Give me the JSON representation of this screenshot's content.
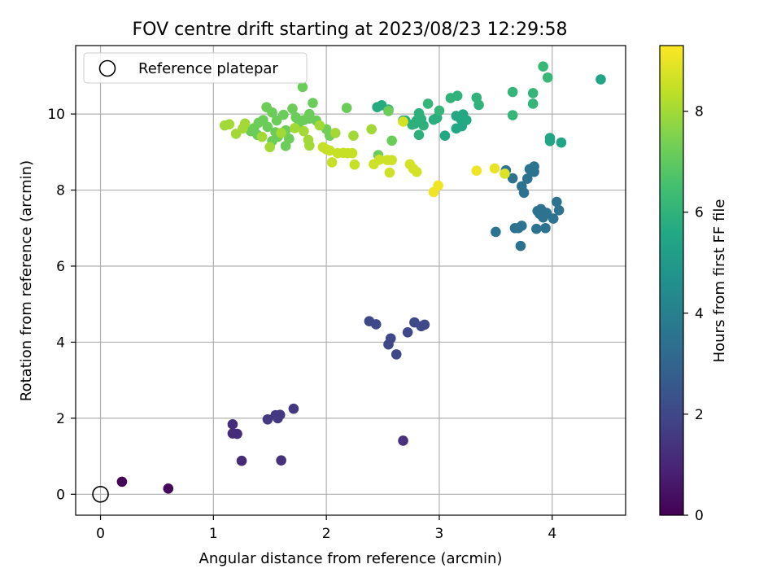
{
  "chart_data": {
    "type": "scatter",
    "title": "FOV centre drift starting at 2023/08/23 12:29:58",
    "xlabel": "Angular distance from reference (arcmin)",
    "ylabel": "Rotation from reference (arcmin)",
    "xlim": [
      -0.22,
      4.65
    ],
    "ylim": [
      -0.55,
      11.8
    ],
    "xticks": [
      0,
      1,
      2,
      3,
      4
    ],
    "yticks": [
      0,
      2,
      4,
      6,
      8,
      10
    ],
    "grid": true,
    "legend": {
      "position": "top-left",
      "entries": [
        "Reference platepar"
      ]
    },
    "reference_point": {
      "x": 0,
      "y": 0,
      "label": "Reference platepar"
    },
    "colorbar": {
      "label": "Hours from first FF file",
      "min": 0,
      "max": 9.3,
      "ticks": [
        0,
        2,
        4,
        6,
        8
      ],
      "colormap": "viridis"
    },
    "points": [
      {
        "x": 0.19,
        "y": 0.33,
        "c": 0.1
      },
      {
        "x": 0.6,
        "y": 0.15,
        "c": 0.2
      },
      {
        "x": 1.17,
        "y": 1.84,
        "c": 1.2
      },
      {
        "x": 1.17,
        "y": 1.6,
        "c": 1.2
      },
      {
        "x": 1.21,
        "y": 1.59,
        "c": 1.2
      },
      {
        "x": 1.25,
        "y": 0.88,
        "c": 1.1
      },
      {
        "x": 1.48,
        "y": 1.97,
        "c": 1.5
      },
      {
        "x": 1.55,
        "y": 2.08,
        "c": 1.5
      },
      {
        "x": 1.57,
        "y": 2.0,
        "c": 1.5
      },
      {
        "x": 1.59,
        "y": 2.09,
        "c": 1.5
      },
      {
        "x": 1.6,
        "y": 0.89,
        "c": 1.3
      },
      {
        "x": 1.71,
        "y": 2.25,
        "c": 1.5
      },
      {
        "x": 2.38,
        "y": 4.55,
        "c": 2.0
      },
      {
        "x": 2.44,
        "y": 4.47,
        "c": 2.0
      },
      {
        "x": 2.55,
        "y": 3.94,
        "c": 2.0
      },
      {
        "x": 2.57,
        "y": 4.1,
        "c": 2.0
      },
      {
        "x": 2.62,
        "y": 3.68,
        "c": 2.0
      },
      {
        "x": 2.68,
        "y": 1.41,
        "c": 1.3
      },
      {
        "x": 2.72,
        "y": 4.26,
        "c": 2.0
      },
      {
        "x": 2.78,
        "y": 4.52,
        "c": 2.0
      },
      {
        "x": 2.84,
        "y": 4.42,
        "c": 2.0
      },
      {
        "x": 2.87,
        "y": 4.46,
        "c": 2.0
      },
      {
        "x": 3.5,
        "y": 6.9,
        "c": 3.5
      },
      {
        "x": 3.59,
        "y": 8.52,
        "c": 3.5
      },
      {
        "x": 3.65,
        "y": 8.31,
        "c": 3.5
      },
      {
        "x": 3.67,
        "y": 7.0,
        "c": 3.5
      },
      {
        "x": 3.7,
        "y": 7.0,
        "c": 3.5
      },
      {
        "x": 3.72,
        "y": 6.53,
        "c": 3.5
      },
      {
        "x": 3.73,
        "y": 7.06,
        "c": 3.5
      },
      {
        "x": 3.73,
        "y": 8.1,
        "c": 3.5
      },
      {
        "x": 3.75,
        "y": 7.93,
        "c": 3.5
      },
      {
        "x": 3.78,
        "y": 8.3,
        "c": 3.5
      },
      {
        "x": 3.8,
        "y": 8.55,
        "c": 3.5
      },
      {
        "x": 3.84,
        "y": 8.62,
        "c": 3.5
      },
      {
        "x": 3.84,
        "y": 8.48,
        "c": 3.5
      },
      {
        "x": 3.86,
        "y": 6.98,
        "c": 3.5
      },
      {
        "x": 3.87,
        "y": 7.45,
        "c": 3.5
      },
      {
        "x": 3.89,
        "y": 7.37,
        "c": 3.5
      },
      {
        "x": 3.9,
        "y": 7.5,
        "c": 3.5
      },
      {
        "x": 3.92,
        "y": 7.28,
        "c": 3.5
      },
      {
        "x": 3.94,
        "y": 7.0,
        "c": 3.5
      },
      {
        "x": 3.95,
        "y": 7.4,
        "c": 3.5
      },
      {
        "x": 4.01,
        "y": 7.25,
        "c": 3.5
      },
      {
        "x": 4.04,
        "y": 7.69,
        "c": 3.5
      },
      {
        "x": 4.06,
        "y": 7.47,
        "c": 3.5
      },
      {
        "x": 3.98,
        "y": 9.37,
        "c": 5.4
      },
      {
        "x": 3.98,
        "y": 9.29,
        "c": 5.4
      },
      {
        "x": 4.08,
        "y": 9.25,
        "c": 5.4
      },
      {
        "x": 4.43,
        "y": 10.91,
        "c": 5.4
      },
      {
        "x": 3.92,
        "y": 11.25,
        "c": 6.2
      },
      {
        "x": 3.96,
        "y": 10.96,
        "c": 6.2
      },
      {
        "x": 3.83,
        "y": 10.55,
        "c": 6.1
      },
      {
        "x": 3.83,
        "y": 10.27,
        "c": 6.1
      },
      {
        "x": 3.65,
        "y": 10.58,
        "c": 6.1
      },
      {
        "x": 3.65,
        "y": 9.97,
        "c": 6.1
      },
      {
        "x": 3.33,
        "y": 10.43,
        "c": 6.0
      },
      {
        "x": 3.35,
        "y": 10.24,
        "c": 6.0
      },
      {
        "x": 3.16,
        "y": 10.48,
        "c": 6.0
      },
      {
        "x": 3.1,
        "y": 10.42,
        "c": 6.0
      },
      {
        "x": 3.15,
        "y": 9.95,
        "c": 5.6
      },
      {
        "x": 3.19,
        "y": 9.87,
        "c": 5.6
      },
      {
        "x": 3.21,
        "y": 9.99,
        "c": 5.6
      },
      {
        "x": 3.24,
        "y": 9.84,
        "c": 5.6
      },
      {
        "x": 3.2,
        "y": 9.68,
        "c": 5.6
      },
      {
        "x": 3.15,
        "y": 9.62,
        "c": 5.6
      },
      {
        "x": 3.05,
        "y": 9.43,
        "c": 5.6
      },
      {
        "x": 2.98,
        "y": 9.9,
        "c": 5.8
      },
      {
        "x": 3.0,
        "y": 10.09,
        "c": 6.1
      },
      {
        "x": 2.9,
        "y": 10.27,
        "c": 6.1
      },
      {
        "x": 2.95,
        "y": 9.85,
        "c": 5.8
      },
      {
        "x": 2.82,
        "y": 10.02,
        "c": 5.9
      },
      {
        "x": 2.8,
        "y": 9.83,
        "c": 5.9
      },
      {
        "x": 2.78,
        "y": 9.74,
        "c": 5.9
      },
      {
        "x": 2.84,
        "y": 9.87,
        "c": 5.9
      },
      {
        "x": 2.86,
        "y": 9.7,
        "c": 5.9
      },
      {
        "x": 2.82,
        "y": 9.45,
        "c": 5.9
      },
      {
        "x": 2.7,
        "y": 9.83,
        "c": 5.9
      },
      {
        "x": 2.76,
        "y": 9.72,
        "c": 5.9
      },
      {
        "x": 2.68,
        "y": 9.83,
        "c": 5.5
      },
      {
        "x": 2.45,
        "y": 10.18,
        "c": 5.7
      },
      {
        "x": 2.49,
        "y": 10.23,
        "c": 5.7
      },
      {
        "x": 2.55,
        "y": 10.12,
        "c": 6.0
      },
      {
        "x": 1.79,
        "y": 10.71,
        "c": 7.2
      },
      {
        "x": 1.88,
        "y": 10.29,
        "c": 7.2
      },
      {
        "x": 1.85,
        "y": 10.0,
        "c": 7.2
      },
      {
        "x": 1.8,
        "y": 9.84,
        "c": 7.2
      },
      {
        "x": 1.73,
        "y": 9.91,
        "c": 7.2
      },
      {
        "x": 1.7,
        "y": 10.14,
        "c": 7.2
      },
      {
        "x": 1.62,
        "y": 9.98,
        "c": 7.2
      },
      {
        "x": 1.56,
        "y": 9.83,
        "c": 7.2
      },
      {
        "x": 1.52,
        "y": 10.04,
        "c": 7.2
      },
      {
        "x": 1.47,
        "y": 10.18,
        "c": 7.2
      },
      {
        "x": 1.44,
        "y": 9.84,
        "c": 7.2
      },
      {
        "x": 1.48,
        "y": 9.66,
        "c": 7.2
      },
      {
        "x": 1.55,
        "y": 9.52,
        "c": 7.2
      },
      {
        "x": 1.57,
        "y": 9.4,
        "c": 7.2
      },
      {
        "x": 1.52,
        "y": 9.29,
        "c": 7.2
      },
      {
        "x": 1.64,
        "y": 9.57,
        "c": 7.2
      },
      {
        "x": 1.67,
        "y": 9.35,
        "c": 7.2
      },
      {
        "x": 1.64,
        "y": 9.16,
        "c": 7.2
      },
      {
        "x": 1.76,
        "y": 9.78,
        "c": 7.2
      },
      {
        "x": 1.85,
        "y": 9.88,
        "c": 7.2
      },
      {
        "x": 1.4,
        "y": 9.77,
        "c": 7.2
      },
      {
        "x": 1.36,
        "y": 9.63,
        "c": 7.2
      },
      {
        "x": 1.39,
        "y": 9.45,
        "c": 7.2
      },
      {
        "x": 1.33,
        "y": 9.55,
        "c": 7.2
      },
      {
        "x": 1.91,
        "y": 9.83,
        "c": 7.2
      },
      {
        "x": 2.18,
        "y": 10.16,
        "c": 7.2
      },
      {
        "x": 2.0,
        "y": 9.6,
        "c": 7.3
      },
      {
        "x": 2.03,
        "y": 9.43,
        "c": 7.3
      },
      {
        "x": 2.55,
        "y": 10.08,
        "c": 7.2
      },
      {
        "x": 2.58,
        "y": 9.3,
        "c": 7.2
      },
      {
        "x": 2.46,
        "y": 8.92,
        "c": 7.2
      },
      {
        "x": 1.1,
        "y": 9.7,
        "c": 8.0
      },
      {
        "x": 1.14,
        "y": 9.73,
        "c": 8.0
      },
      {
        "x": 1.2,
        "y": 9.48,
        "c": 8.0
      },
      {
        "x": 1.26,
        "y": 9.62,
        "c": 8.0
      },
      {
        "x": 1.28,
        "y": 9.75,
        "c": 8.0
      },
      {
        "x": 1.43,
        "y": 9.4,
        "c": 8.0
      },
      {
        "x": 1.5,
        "y": 9.13,
        "c": 8.0
      },
      {
        "x": 1.6,
        "y": 9.5,
        "c": 8.0
      },
      {
        "x": 1.72,
        "y": 9.63,
        "c": 8.0
      },
      {
        "x": 1.8,
        "y": 9.55,
        "c": 8.0
      },
      {
        "x": 1.84,
        "y": 9.32,
        "c": 8.0
      },
      {
        "x": 1.85,
        "y": 9.17,
        "c": 8.0
      },
      {
        "x": 1.94,
        "y": 9.7,
        "c": 8.0
      },
      {
        "x": 2.08,
        "y": 9.5,
        "c": 8.0
      },
      {
        "x": 2.24,
        "y": 9.43,
        "c": 8.0
      },
      {
        "x": 2.4,
        "y": 9.6,
        "c": 8.0
      },
      {
        "x": 1.97,
        "y": 9.13,
        "c": 8.5
      },
      {
        "x": 2.0,
        "y": 9.07,
        "c": 8.5
      },
      {
        "x": 2.03,
        "y": 9.04,
        "c": 8.5
      },
      {
        "x": 2.1,
        "y": 8.97,
        "c": 8.5
      },
      {
        "x": 2.15,
        "y": 8.98,
        "c": 8.5
      },
      {
        "x": 2.19,
        "y": 8.97,
        "c": 8.5
      },
      {
        "x": 2.23,
        "y": 8.97,
        "c": 8.5
      },
      {
        "x": 2.05,
        "y": 8.73,
        "c": 8.5
      },
      {
        "x": 2.25,
        "y": 8.67,
        "c": 8.5
      },
      {
        "x": 2.42,
        "y": 8.68,
        "c": 8.6
      },
      {
        "x": 2.47,
        "y": 8.8,
        "c": 8.6
      },
      {
        "x": 2.54,
        "y": 8.79,
        "c": 8.6
      },
      {
        "x": 2.58,
        "y": 8.79,
        "c": 8.6
      },
      {
        "x": 2.56,
        "y": 8.46,
        "c": 8.6
      },
      {
        "x": 2.74,
        "y": 8.68,
        "c": 8.7
      },
      {
        "x": 2.77,
        "y": 8.56,
        "c": 8.7
      },
      {
        "x": 2.8,
        "y": 8.48,
        "c": 8.7
      },
      {
        "x": 2.68,
        "y": 9.8,
        "c": 8.7
      },
      {
        "x": 2.95,
        "y": 7.95,
        "c": 9.1
      },
      {
        "x": 2.99,
        "y": 8.12,
        "c": 9.1
      },
      {
        "x": 3.33,
        "y": 8.51,
        "c": 9.1
      },
      {
        "x": 3.49,
        "y": 8.57,
        "c": 9.0
      },
      {
        "x": 3.58,
        "y": 8.43,
        "c": 8.8
      }
    ]
  }
}
